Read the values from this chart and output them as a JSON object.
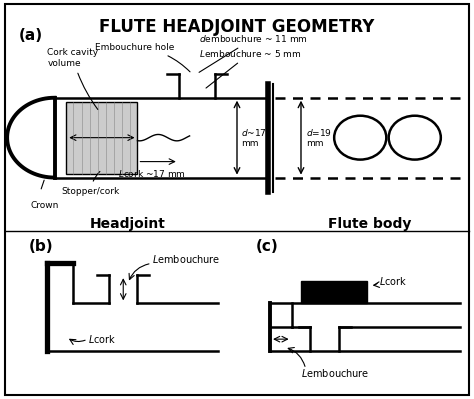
{
  "title": "FLUTE HEADJOINT GEOMETRY",
  "title_fontsize": 14,
  "bg_color": "#ffffff",
  "line_color": "#000000",
  "gray_fill": "#cccccc",
  "label_a": "(a)",
  "label_b": "(b)",
  "label_c": "(c)",
  "headjoint_label": "Headjoint",
  "flutebody_label": "Flute body",
  "annotations": {
    "embouchure_hole": "Embouchure hole",
    "cork_cavity": "Cork cavity\nvolume",
    "stopper": "Stopper/cork",
    "crown": "Crown",
    "d_emb": "$d$embouchure ~ 11 mm",
    "L_emb": "$L$embouchure ~ 5 mm",
    "d_17": "$d$~17\nmm",
    "d_19": "$d$=19\nmm",
    "L_cork": "$L$cork ~17 mm"
  }
}
